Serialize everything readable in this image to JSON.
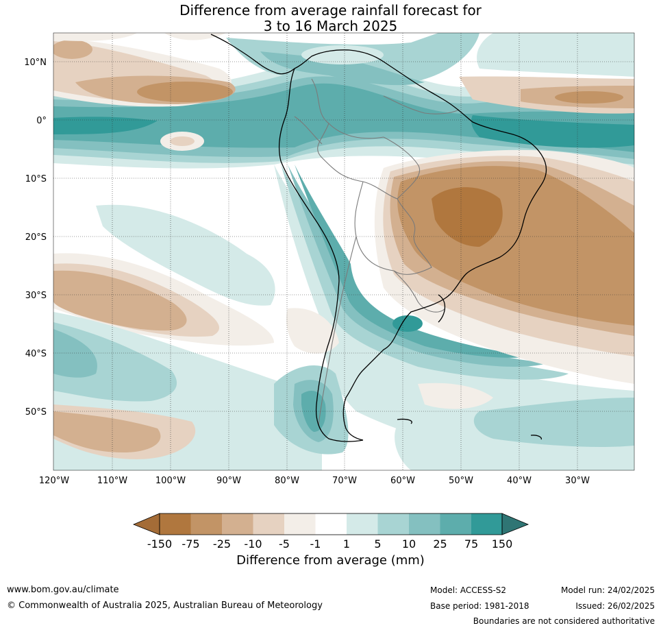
{
  "title": {
    "line1": "Difference from average rainfall forecast for",
    "line2": "3 to 16 March 2025"
  },
  "map": {
    "lat_labels": [
      "10°N",
      "0°",
      "10°S",
      "20°S",
      "30°S",
      "40°S",
      "50°S"
    ],
    "lon_labels": [
      "120°W",
      "110°W",
      "100°W",
      "90°W",
      "80°W",
      "70°W",
      "60°W",
      "50°W",
      "40°W",
      "30°W"
    ]
  },
  "colorbar": {
    "title": "Difference from average (mm)",
    "tick_labels": [
      "-150",
      "-75",
      "-25",
      "-10",
      "-5",
      "-1",
      "1",
      "5",
      "10",
      "25",
      "75",
      "150"
    ],
    "colors": [
      "#a46c37",
      "#b0773e",
      "#c29466",
      "#d3b090",
      "#e6d2c1",
      "#f3eee8",
      "#ffffff",
      "#d4eae8",
      "#a8d4d3",
      "#84c0c0",
      "#5dadac",
      "#319a98",
      "#2f7574"
    ]
  },
  "footer": {
    "url": "www.bom.gov.au/climate",
    "copyright": "© Commonwealth of Australia 2025, Australian Bureau of Meteorology",
    "model": "Model: ACCESS-S2",
    "base_period": "Base period: 1981-2018",
    "model_run": "Model run: 24/02/2025",
    "issued": "Issued: 26/02/2025",
    "disclaimer": "Boundaries are not considered authoritative"
  }
}
